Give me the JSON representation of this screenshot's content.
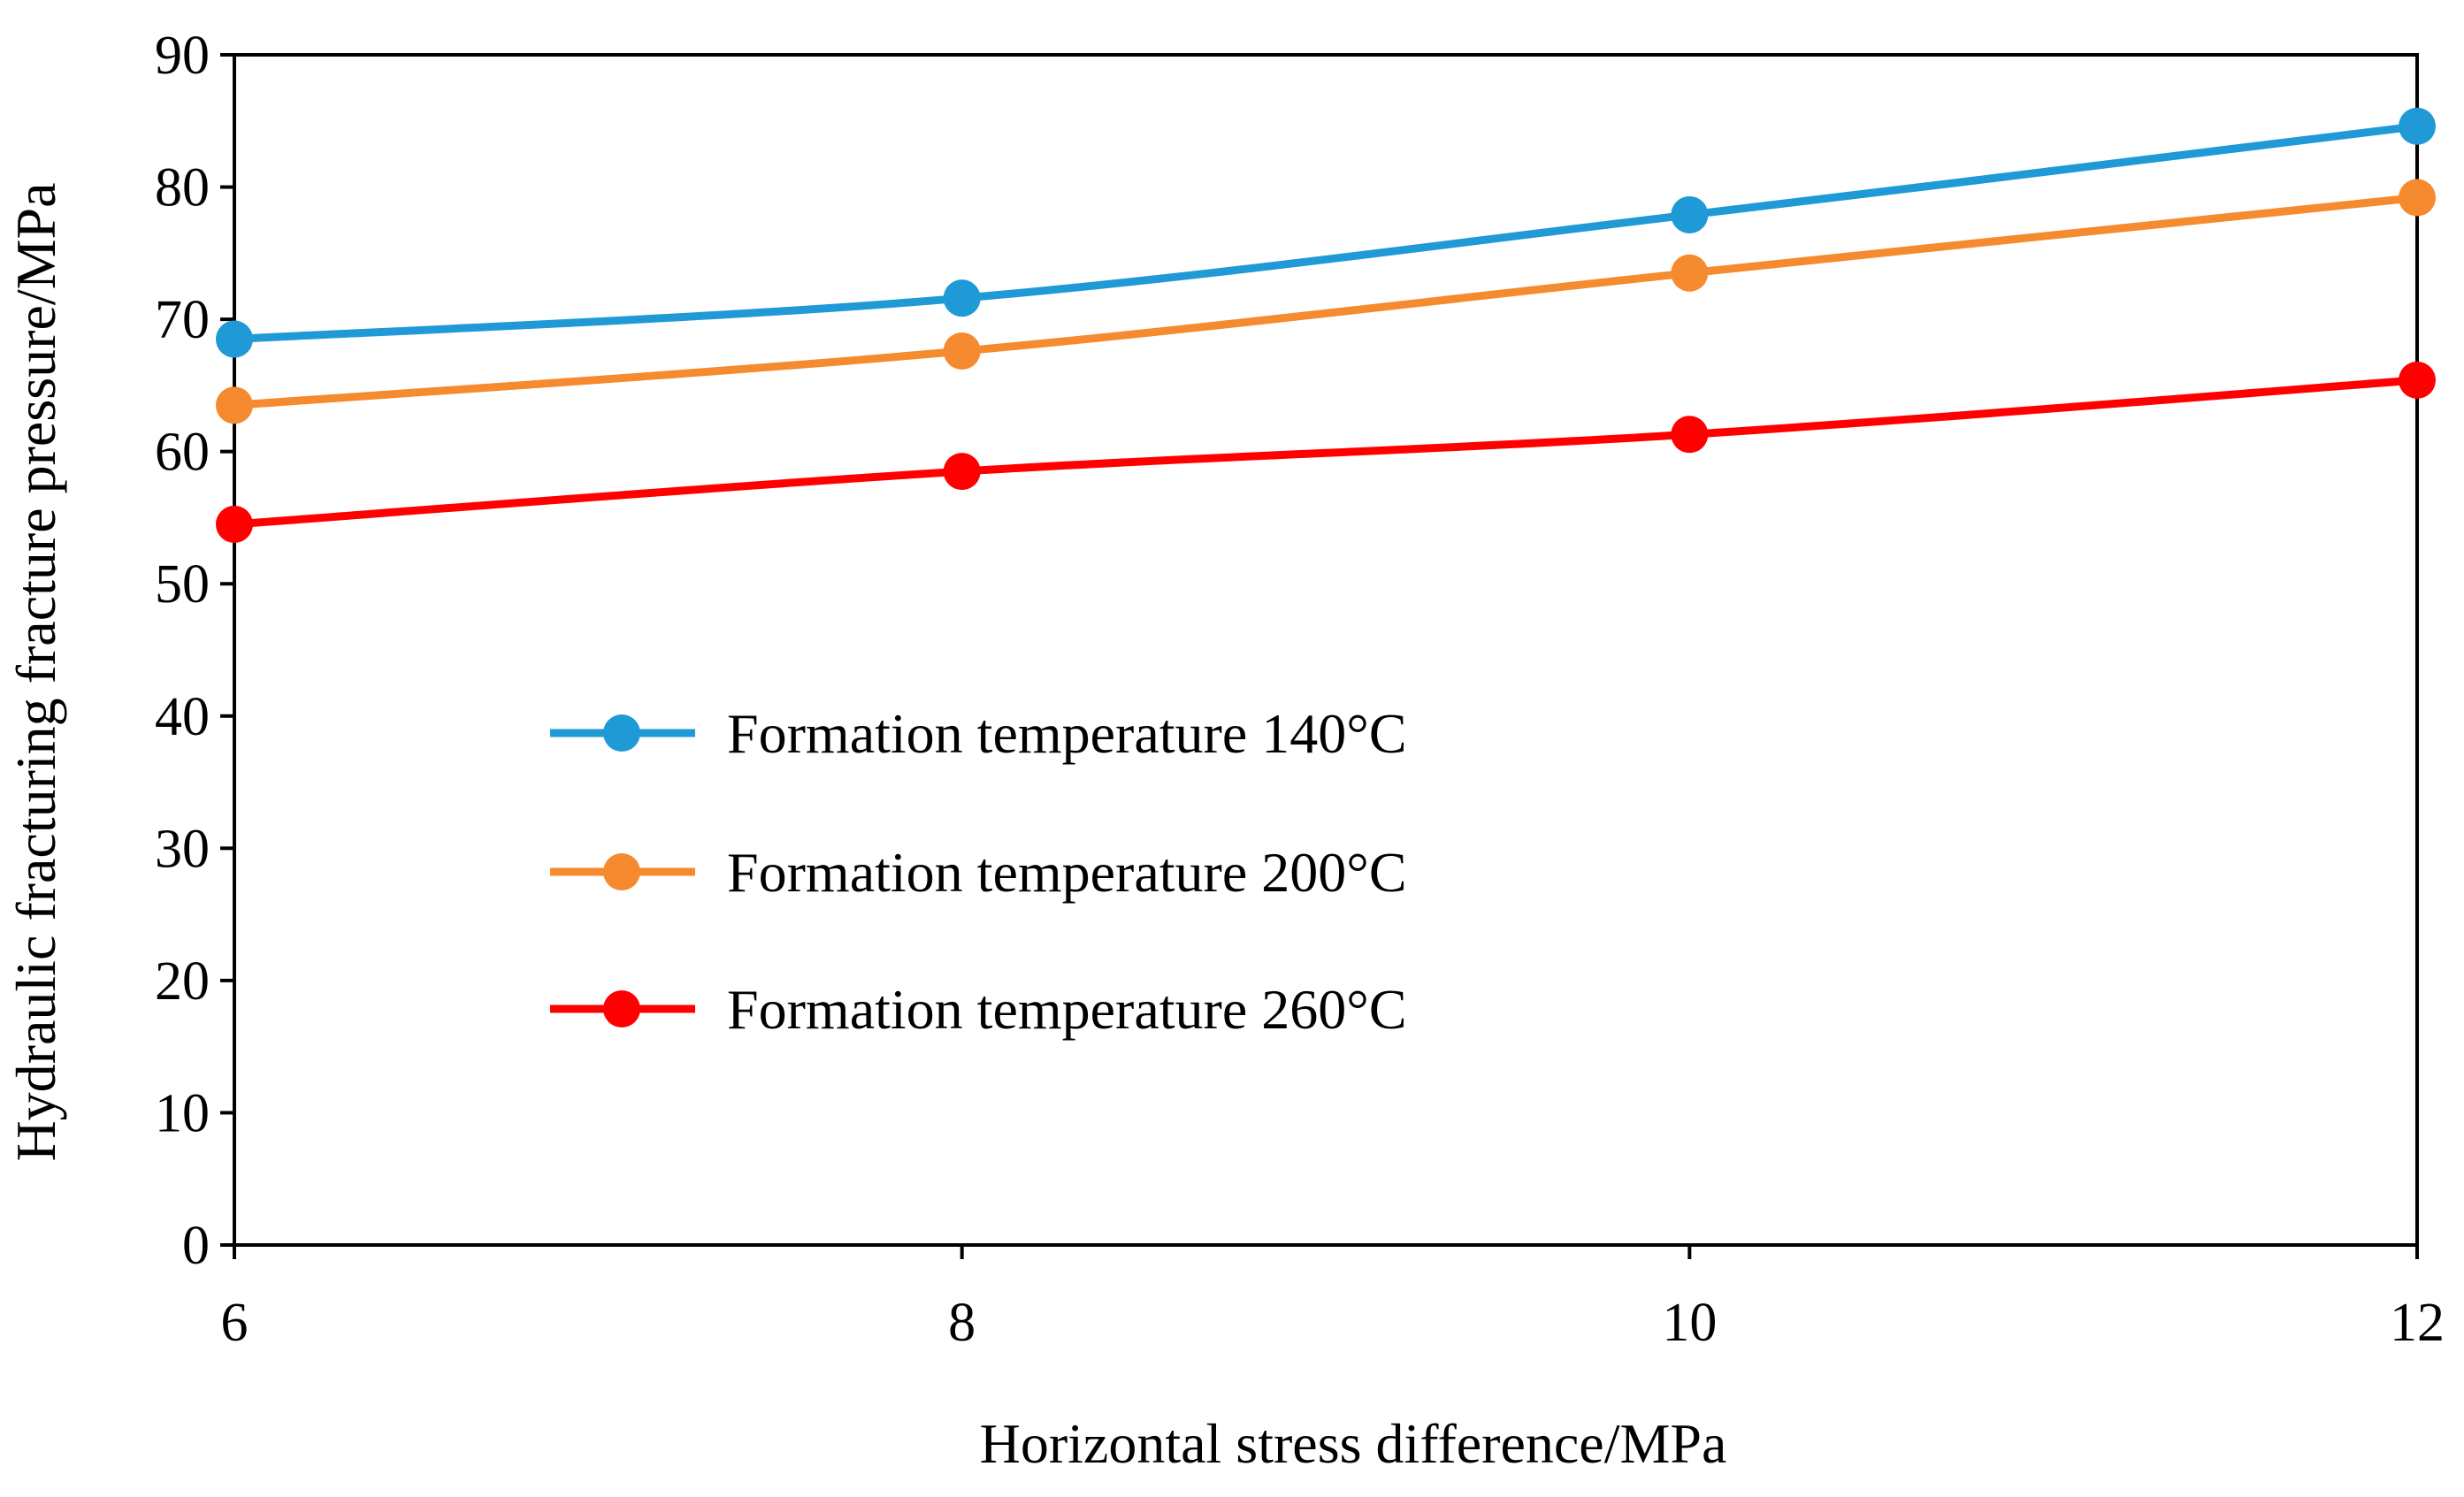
{
  "chart_data": {
    "type": "line",
    "title": "",
    "xlabel": "Horizontal stress difference/MPa",
    "ylabel": "Hydraulic fracturing fracture pressure/MPa",
    "x": [
      6,
      8,
      10,
      12
    ],
    "x_ticks": [
      "6",
      "8",
      "10",
      "12"
    ],
    "xlim": [
      6,
      12
    ],
    "y_ticks": [
      "0",
      "10",
      "20",
      "30",
      "40",
      "50",
      "60",
      "70",
      "80",
      "90"
    ],
    "ylim": [
      0,
      90
    ],
    "grid": false,
    "legend_position": "center-left",
    "series": [
      {
        "name": "Formation temperature 140°C",
        "color": "#1f9ad6",
        "values": [
          68.5,
          71.6,
          77.9,
          84.6
        ]
      },
      {
        "name": "Formation temperature 200°C",
        "color": "#f58a2f",
        "values": [
          63.5,
          67.6,
          73.5,
          79.2
        ]
      },
      {
        "name": "Formation temperature 260°C",
        "color": "#ff0000",
        "values": [
          54.5,
          58.5,
          61.3,
          65.4
        ]
      }
    ]
  }
}
